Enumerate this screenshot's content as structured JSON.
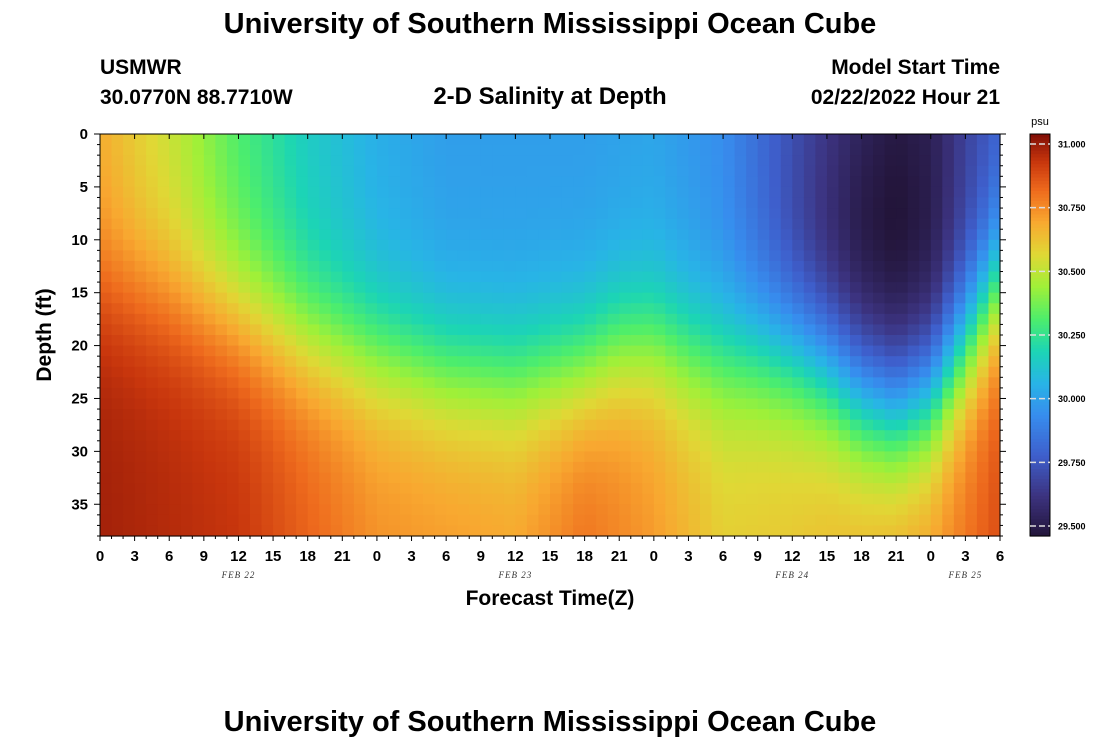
{
  "header": {
    "title": "University of Southern Mississippi Ocean Cube",
    "station": "USMWR",
    "coords": "30.0770N  88.7710W",
    "plot_title": "2-D Salinity at Depth",
    "start_label": "Model Start Time",
    "start_value": "02/22/2022 Hour 21"
  },
  "footer": {
    "title": "University of Southern Mississippi Ocean Cube"
  },
  "chart_data": {
    "type": "heatmap",
    "title": "2-D Salinity at Depth",
    "xlabel": "Forecast Time(Z)",
    "ylabel": "Depth (ft)",
    "x_ticks": [
      "0",
      "3",
      "6",
      "9",
      "12",
      "15",
      "18",
      "21",
      "0",
      "3",
      "6",
      "9",
      "12",
      "15",
      "18",
      "21",
      "0",
      "3",
      "6",
      "9",
      "12",
      "15",
      "18",
      "21",
      "0",
      "3",
      "6"
    ],
    "x_range_hours": [
      0,
      78
    ],
    "date_labels": [
      {
        "label": "FEB 22",
        "hour": 12
      },
      {
        "label": "FEB 23",
        "hour": 36
      },
      {
        "label": "FEB 24",
        "hour": 60
      },
      {
        "label": "FEB 25",
        "hour": 75
      }
    ],
    "y_ticks": [
      0,
      5,
      10,
      15,
      20,
      25,
      30,
      35
    ],
    "ylim": [
      0,
      38
    ],
    "colorbar": {
      "unit": "psu",
      "min": 29.5,
      "max": 31.0,
      "ticks": [
        "31.000",
        "30.750",
        "30.500",
        "30.250",
        "30.000",
        "29.750",
        "29.500"
      ]
    },
    "boundary_depth_ft": [
      {
        "hour": 0,
        "depth": 14
      },
      {
        "hour": 6,
        "depth": 15
      },
      {
        "hour": 12,
        "depth": 17
      },
      {
        "hour": 18,
        "depth": 19.5
      },
      {
        "hour": 24,
        "depth": 21
      },
      {
        "hour": 30,
        "depth": 22.5
      },
      {
        "hour": 36,
        "depth": 23
      },
      {
        "hour": 42,
        "depth": 22
      },
      {
        "hour": 45,
        "depth": 20
      },
      {
        "hour": 48,
        "depth": 19.5
      },
      {
        "hour": 51,
        "depth": 20.5
      },
      {
        "hour": 54,
        "depth": 21
      },
      {
        "hour": 57,
        "depth": 21
      },
      {
        "hour": 60,
        "depth": 21.5
      },
      {
        "hour": 63,
        "depth": 23
      },
      {
        "hour": 66,
        "depth": 25.5
      },
      {
        "hour": 69,
        "depth": 26.5
      },
      {
        "hour": 72,
        "depth": 25
      },
      {
        "hour": 75,
        "depth": 20
      },
      {
        "hour": 78,
        "depth": 14
      }
    ],
    "surface_salinity_psu": [
      {
        "hour": 0,
        "value": 30.65
      },
      {
        "hour": 6,
        "value": 30.5
      },
      {
        "hour": 12,
        "value": 30.3
      },
      {
        "hour": 18,
        "value": 30.15
      },
      {
        "hour": 24,
        "value": 30.05
      },
      {
        "hour": 30,
        "value": 30.0
      },
      {
        "hour": 36,
        "value": 30.0
      },
      {
        "hour": 42,
        "value": 30.0
      },
      {
        "hour": 48,
        "value": 30.02
      },
      {
        "hour": 54,
        "value": 29.95
      },
      {
        "hour": 60,
        "value": 29.75
      },
      {
        "hour": 66,
        "value": 29.58
      },
      {
        "hour": 69,
        "value": 29.53
      },
      {
        "hour": 72,
        "value": 29.56
      },
      {
        "hour": 75,
        "value": 29.7
      },
      {
        "hour": 78,
        "value": 29.8
      }
    ],
    "bottom_salinity_psu": [
      {
        "hour": 0,
        "value": 30.95
      },
      {
        "hour": 12,
        "value": 30.9
      },
      {
        "hour": 24,
        "value": 30.72
      },
      {
        "hour": 36,
        "value": 30.68
      },
      {
        "hour": 42,
        "value": 30.78
      },
      {
        "hour": 48,
        "value": 30.7
      },
      {
        "hour": 54,
        "value": 30.58
      },
      {
        "hour": 60,
        "value": 30.6
      },
      {
        "hour": 66,
        "value": 30.65
      },
      {
        "hour": 72,
        "value": 30.7
      },
      {
        "hour": 78,
        "value": 30.85
      }
    ],
    "trough_depth_ft": {
      "hour": 66,
      "depth": 10
    }
  }
}
